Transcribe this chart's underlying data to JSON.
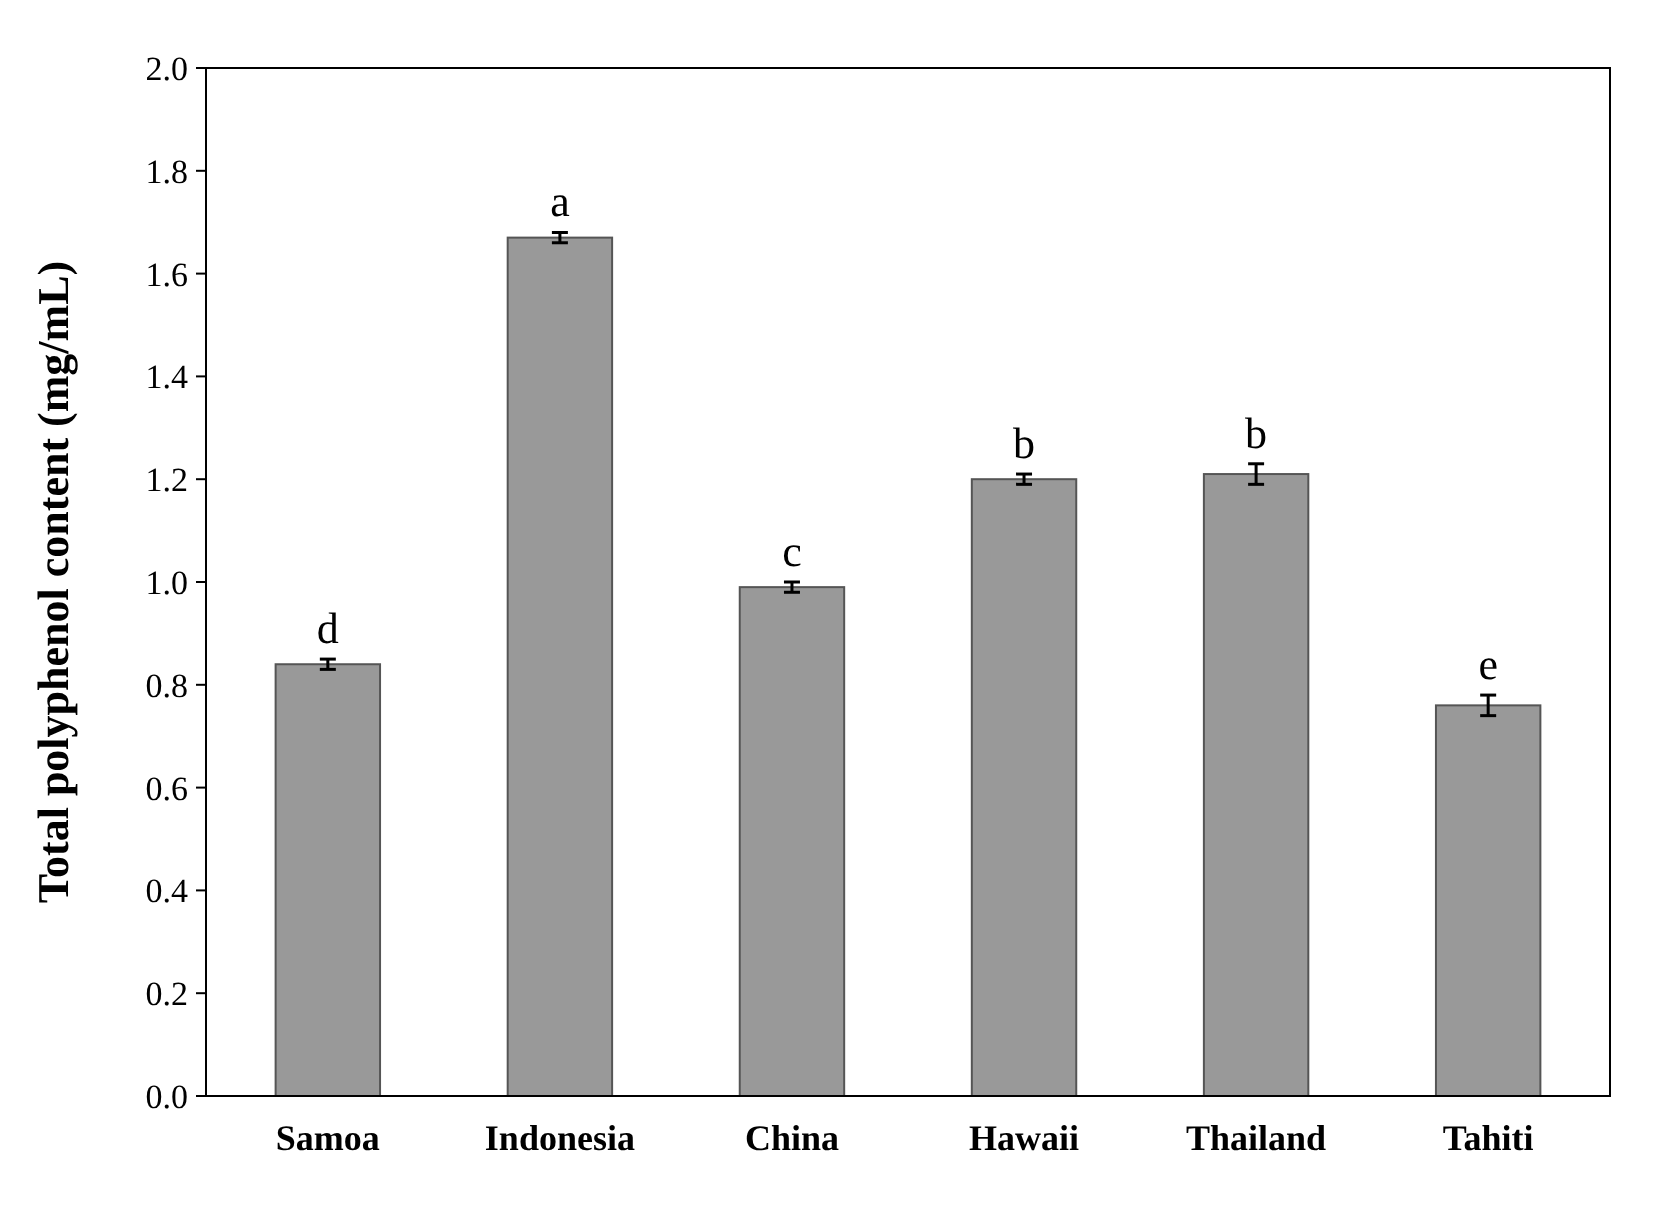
{
  "chart_data": {
    "type": "bar",
    "ylabel": "Total polyphenol content (mg/mL)",
    "categories": [
      "Samoa",
      "Indonesia",
      "China",
      "Hawaii",
      "Thailand",
      "Tahiti"
    ],
    "values": [
      0.84,
      1.67,
      0.99,
      1.2,
      1.21,
      0.76
    ],
    "errors": [
      0.01,
      0.01,
      0.01,
      0.01,
      0.02,
      0.02
    ],
    "color": "#999999",
    "ylim": [
      0,
      2
    ],
    "yticks": [
      {
        "value": 0,
        "label": "0.0"
      },
      {
        "value": 0.2,
        "label": "0.2"
      },
      {
        "value": 0.4,
        "label": "0.4"
      },
      {
        "value": 0.6,
        "label": "0.6"
      },
      {
        "value": 0.8,
        "label": "0.8"
      },
      {
        "value": 1,
        "label": "1.0"
      },
      {
        "value": 1.2,
        "label": "1.2"
      },
      {
        "value": 1.4,
        "label": "1.4"
      },
      {
        "value": 1.6,
        "label": "1.6"
      },
      {
        "value": 1.8,
        "label": "1.8"
      },
      {
        "value": 2,
        "label": "2.0"
      }
    ],
    "annotations": [
      {
        "text": "d",
        "x": "Samoa",
        "y": 0.85
      },
      {
        "text": "a",
        "x": "Indonesia",
        "y": 1.68
      },
      {
        "text": "c",
        "x": "China",
        "y": 1.0
      },
      {
        "text": "b",
        "x": "Hawaii",
        "y": 1.21
      },
      {
        "text": "b",
        "x": "Thailand",
        "y": 1.23
      },
      {
        "text": "e",
        "x": "Tahiti",
        "y": 0.78
      }
    ]
  }
}
